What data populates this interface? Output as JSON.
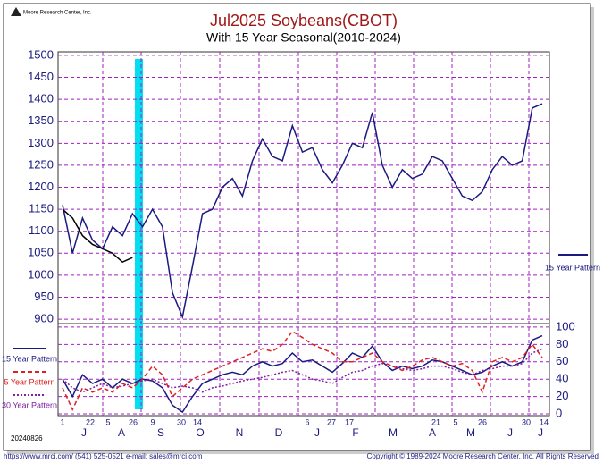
{
  "logo": "Moore Research Center, Inc.",
  "date_stamp": "20240826",
  "footer_contact": "https://www.mrci.com/   (541) 525-0521   e-mail: sales@mrci.com",
  "footer_copyright": "Copyright © 1989-2024 Moore Research Center, Inc. All Rights Reserved",
  "chart_data": [
    {
      "type": "line",
      "title": "Jul2025 Soybeans(CBOT)",
      "subtitle": "With 15 Year Seasonal(2010-2024)",
      "ylim": [
        890,
        1508
      ],
      "yticks": [
        900,
        950,
        1000,
        1050,
        1100,
        1150,
        1200,
        1250,
        1300,
        1350,
        1400,
        1450,
        1500
      ],
      "grid": true,
      "series": [
        {
          "name": "15 Year Pattern",
          "color": "#1a1a80",
          "values": [
            1160,
            1050,
            1130,
            1080,
            1060,
            1110,
            1090,
            1140,
            1110,
            1150,
            1110,
            960,
            905,
            1020,
            1140,
            1150,
            1200,
            1220,
            1180,
            1260,
            1310,
            1270,
            1260,
            1340,
            1280,
            1290,
            1240,
            1210,
            1250,
            1300,
            1290,
            1370,
            1250,
            1200,
            1240,
            1220,
            1230,
            1270,
            1260,
            1220,
            1180,
            1170,
            1190,
            1240,
            1270,
            1250,
            1260,
            1380,
            1390
          ]
        },
        {
          "color": "#000000",
          "values": [
            1150,
            1130,
            1090,
            1070,
            1060,
            1050,
            1030,
            1040,
            null,
            null,
            null,
            null,
            null,
            null,
            null,
            null,
            null,
            null,
            null,
            null,
            null,
            null,
            null,
            null,
            null,
            null,
            null,
            null,
            null,
            null,
            null,
            null,
            null,
            null,
            null,
            null,
            null,
            null,
            null,
            null,
            null,
            null,
            null,
            null,
            null,
            null,
            null,
            null,
            null
          ]
        }
      ]
    },
    {
      "type": "line",
      "ylim": [
        -2,
        104
      ],
      "yticks": [
        0,
        20,
        40,
        60,
        80,
        100
      ],
      "grid": true,
      "day_labels": [
        "1",
        "22",
        "5",
        "26",
        "9",
        "30",
        "14",
        "6",
        "27",
        "17",
        "21",
        "5",
        "26",
        "30",
        "14"
      ],
      "month_labels": [
        "J",
        "A",
        "S",
        "O",
        "N",
        "D",
        "J",
        "F",
        "M",
        "A",
        "M",
        "J",
        "J"
      ],
      "series": [
        {
          "name": "15 Year Pattern",
          "color": "#1a1a80",
          "dash": "solid",
          "values": [
            40,
            20,
            45,
            35,
            40,
            30,
            40,
            35,
            40,
            38,
            30,
            10,
            2,
            20,
            35,
            40,
            45,
            48,
            45,
            55,
            60,
            55,
            58,
            70,
            60,
            62,
            55,
            48,
            58,
            70,
            65,
            78,
            60,
            50,
            55,
            52,
            55,
            62,
            60,
            55,
            50,
            45,
            48,
            55,
            60,
            55,
            60,
            85,
            90
          ]
        },
        {
          "name": "5 Year Pattern",
          "color": "#e02020",
          "dash": "dashed",
          "values": [
            30,
            5,
            30,
            25,
            30,
            25,
            35,
            30,
            40,
            55,
            45,
            20,
            30,
            40,
            45,
            50,
            55,
            60,
            65,
            70,
            75,
            72,
            80,
            95,
            88,
            80,
            75,
            70,
            60,
            60,
            65,
            70,
            60,
            55,
            50,
            55,
            62,
            65,
            60,
            55,
            58,
            50,
            25,
            60,
            65,
            60,
            65,
            80,
            65
          ]
        },
        {
          "name": "30 Year Pattern",
          "color": "#8020a0",
          "dash": "dotted",
          "values": [
            40,
            30,
            25,
            30,
            35,
            30,
            32,
            35,
            38,
            40,
            35,
            30,
            32,
            30,
            25,
            30,
            32,
            35,
            38,
            40,
            42,
            45,
            48,
            50,
            45,
            40,
            38,
            35,
            42,
            48,
            50,
            55,
            58,
            55,
            52,
            50,
            52,
            55,
            55,
            52,
            48,
            45,
            50,
            52,
            55,
            55,
            58,
            70,
            75
          ]
        }
      ]
    }
  ]
}
